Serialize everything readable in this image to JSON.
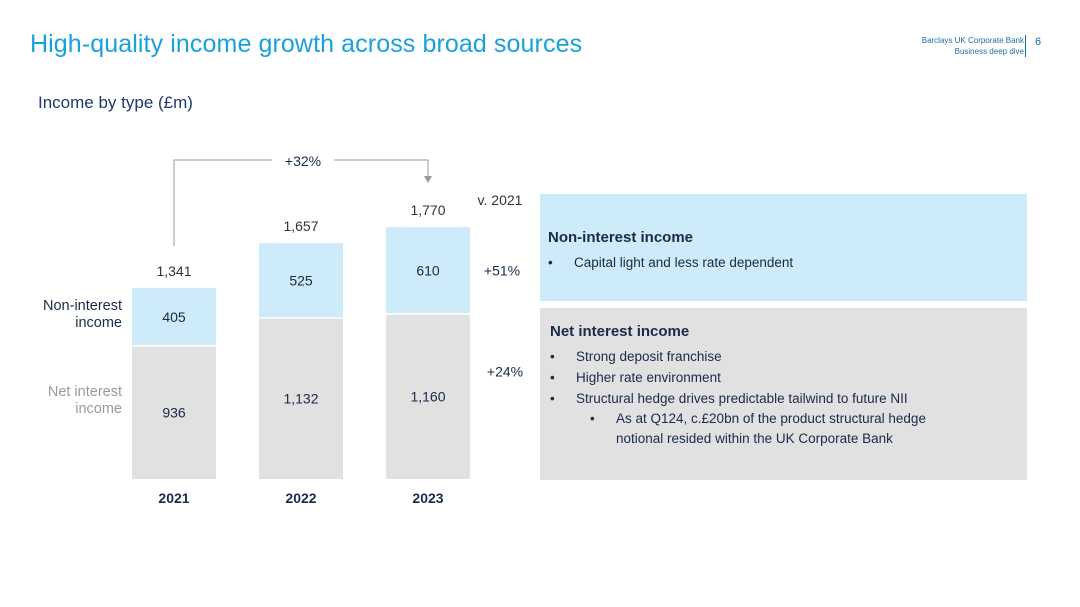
{
  "header": {
    "title": "High-quality income growth across broad sources",
    "brand_line1": "Barclays UK Corporate Bank",
    "brand_line2": "Business deep dive",
    "page_number": "6"
  },
  "colors": {
    "accent": "#1aa0dc",
    "non_interest_fill": "#cdebf8",
    "net_interest_fill": "#e1e1e1"
  },
  "chart_data": {
    "type": "bar",
    "stacked": true,
    "title": "Income by type (£m)",
    "categories": [
      "2021",
      "2022",
      "2023"
    ],
    "series": [
      {
        "name": "Net interest\nincome",
        "values": [
          936,
          1132,
          1160
        ],
        "labels": [
          "936",
          "1,132",
          "1,160"
        ]
      },
      {
        "name": "Non-interest\nincome",
        "values": [
          405,
          525,
          610
        ],
        "labels": [
          "405",
          "525",
          "610"
        ]
      }
    ],
    "totals": [
      1341,
      1657,
      1770
    ],
    "total_labels": [
      "1,341",
      "1,657",
      "1,770"
    ],
    "growth_arrow_label": "+32%",
    "vs_header": "v. 2021",
    "vs_changes": {
      "non_interest": "+51%",
      "net_interest": "+24%"
    },
    "ylim": [
      0,
      1800
    ]
  },
  "panels": {
    "non_interest": {
      "heading": "Non-interest income",
      "bullets": [
        "Capital light and less rate dependent"
      ]
    },
    "net_interest": {
      "heading": "Net interest income",
      "bullets": [
        "Strong deposit franchise",
        "Higher rate environment",
        "Structural hedge drives predictable tailwind to future NII"
      ],
      "sub_bullet_line1": "As at Q124, c.£20bn of the product structural hedge",
      "sub_bullet_line2": "notional resided within the UK Corporate Bank"
    },
    "bullet_glyph": "•"
  }
}
